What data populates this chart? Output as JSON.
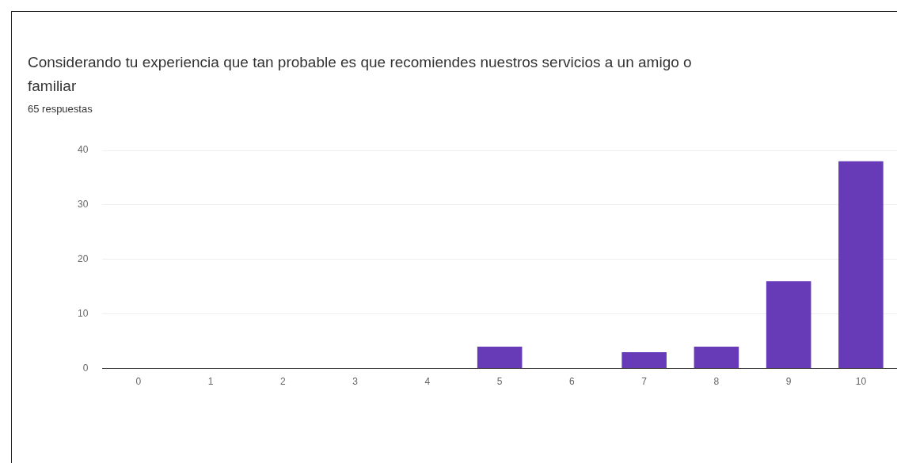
{
  "chart_data": {
    "type": "bar",
    "title": "Considerando tu experiencia que tan probable es que recomiendes nuestros servicios a un amigo o familiar",
    "subtitle": "65 respuestas",
    "categories": [
      "0",
      "1",
      "2",
      "3",
      "4",
      "5",
      "6",
      "7",
      "8",
      "9",
      "10"
    ],
    "values": [
      0,
      0,
      0,
      0,
      0,
      4,
      0,
      3,
      4,
      16,
      38
    ],
    "color": "#673ab7",
    "ylim": [
      0,
      40
    ],
    "yticks": [
      0,
      10,
      20,
      30,
      40
    ],
    "grid": "y"
  }
}
